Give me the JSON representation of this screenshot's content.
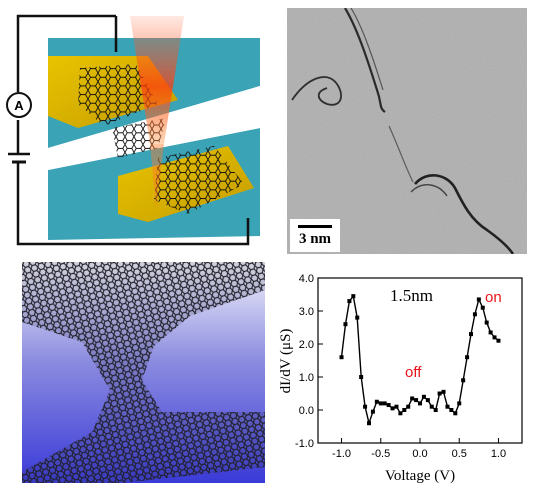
{
  "schematic": {
    "ammeter_label": "A"
  },
  "tem": {
    "scale_bar_label": "3 nm"
  },
  "chart_data": {
    "type": "line",
    "title": "1.5nm",
    "xlabel": "Voltage (V)",
    "ylabel": "dI/dV (μS)",
    "xlim": [
      -1.3,
      1.3
    ],
    "ylim": [
      -1.0,
      4.0
    ],
    "xticks": [
      "-1.0",
      "-0.5",
      "0.0",
      "0.5",
      "1.0"
    ],
    "yticks": [
      "-1.0",
      "0.0",
      "1.0",
      "2.0",
      "3.0",
      "4.0"
    ],
    "annotations": [
      "off",
      "on"
    ],
    "annotation_color": "#e8151b",
    "series": [
      {
        "x": [
          -1.0,
          -0.95,
          -0.9,
          -0.85,
          -0.8,
          -0.75,
          -0.7,
          -0.65,
          -0.6,
          -0.55,
          -0.5,
          -0.45,
          -0.4,
          -0.35,
          -0.3,
          -0.25,
          -0.2,
          -0.15,
          -0.1,
          -0.05,
          0.0,
          0.05,
          0.1,
          0.15,
          0.2,
          0.25,
          0.3,
          0.35,
          0.4,
          0.45,
          0.5,
          0.55,
          0.6,
          0.65,
          0.7,
          0.75,
          0.8,
          0.85,
          0.9,
          0.95,
          1.0
        ],
        "y": [
          1.6,
          2.6,
          3.3,
          3.45,
          2.8,
          1.0,
          0.1,
          -0.4,
          -0.05,
          0.25,
          0.2,
          0.2,
          0.15,
          0.05,
          0.1,
          -0.1,
          0.0,
          0.1,
          0.35,
          0.3,
          0.2,
          0.4,
          0.3,
          0.1,
          0.0,
          0.5,
          0.55,
          0.1,
          0.0,
          -0.1,
          0.2,
          0.9,
          1.6,
          2.3,
          2.9,
          3.35,
          3.1,
          2.65,
          2.35,
          2.2,
          2.1
        ]
      }
    ]
  }
}
